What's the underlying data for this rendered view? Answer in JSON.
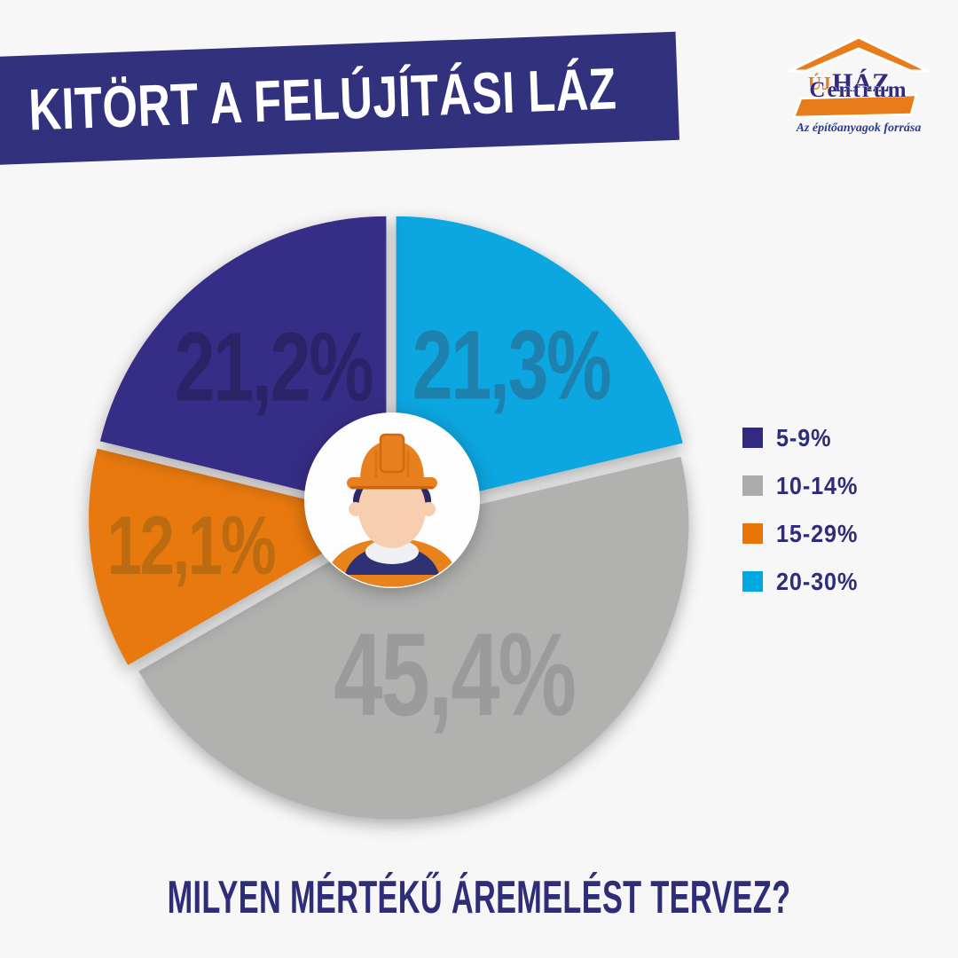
{
  "page": {
    "background": "#f7f7f7"
  },
  "banner": {
    "text": "KITÖRT A FELÚJÍTÁSI LÁZ",
    "bg_color": "#32317d",
    "text_color": "#ffffff"
  },
  "logo": {
    "uj": "ÚJ",
    "haz": "HÁZ",
    "centrum": "Centrum",
    "tagline": "Az építőanyagok forrása",
    "orange": "#e87b1a",
    "navy": "#312a7d",
    "tagline_color": "#2b3a8f"
  },
  "question": {
    "text": "MILYEN MÉRTÉKŰ ÁREMELÉST TERVEZ?",
    "color": "#2e2d78"
  },
  "chart_data": {
    "type": "pie",
    "title": "KITÖRT A FELÚJÍTÁSI LÁZ",
    "question": "MILYEN MÉRTÉKŰ ÁREMELÉST TERVEZ?",
    "start_angle_deg": 0,
    "direction": "clockwise",
    "center_icon": "construction-worker",
    "legend_position": "right",
    "slices": [
      {
        "category": "20-30%",
        "value": 21.3,
        "label": "21,3%",
        "color": "#0ca6e0",
        "label_color": "#1e80ad",
        "label_radius_frac": 0.63,
        "font_px": 110
      },
      {
        "category": "10-14%",
        "value": 45.4,
        "label": "45,4%",
        "color": "#b1b1b0",
        "label_color": "#9b9b9b",
        "label_radius_frac": 0.55,
        "font_px": 133
      },
      {
        "category": "15-29%",
        "value": 12.1,
        "label": "12,1%",
        "color": "#e8790f",
        "label_color": "#bd6b10",
        "label_radius_frac": 0.66,
        "font_px": 94
      },
      {
        "category": "5-9%",
        "value": 21.2,
        "label": "21,2%",
        "color": "#362e86",
        "label_color": "#2a2367",
        "label_radius_frac": 0.62,
        "font_px": 110
      }
    ],
    "legend": [
      {
        "label": "5-9%",
        "color": "#322a80"
      },
      {
        "label": "10-14%",
        "color": "#ababab"
      },
      {
        "label": "15-29%",
        "color": "#e97507"
      },
      {
        "label": "20-30%",
        "color": "#00a8e0"
      }
    ]
  }
}
